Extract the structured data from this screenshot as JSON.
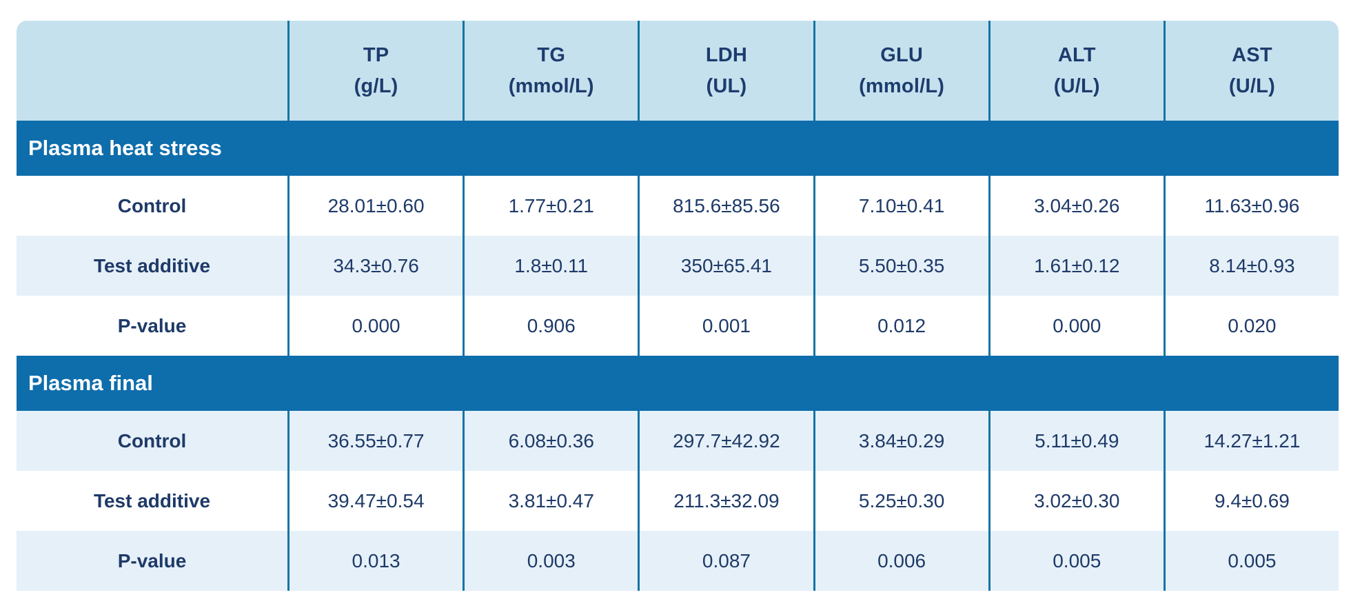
{
  "table": {
    "columns": [
      {
        "name": "TP",
        "unit": "(g/L)"
      },
      {
        "name": "TG",
        "unit": "(mmol/L)"
      },
      {
        "name": "LDH",
        "unit": "(UL)"
      },
      {
        "name": "GLU",
        "unit": "(mmol/L)"
      },
      {
        "name": "ALT",
        "unit": "(U/L)"
      },
      {
        "name": "AST",
        "unit": "(U/L)"
      }
    ],
    "sections": [
      {
        "title": "Plasma heat stress",
        "rows": [
          {
            "label": "Control",
            "values": [
              "28.01±0.60",
              "1.77±0.21",
              "815.6±85.56",
              "7.10±0.41",
              "3.04±0.26",
              "11.63±0.96"
            ]
          },
          {
            "label": "Test additive",
            "values": [
              "34.3±0.76",
              "1.8±0.11",
              "350±65.41",
              "5.50±0.35",
              "1.61±0.12",
              "8.14±0.93"
            ]
          },
          {
            "label": "P-value",
            "values": [
              "0.000",
              "0.906",
              "0.001",
              "0.012",
              "0.000",
              "0.020"
            ]
          }
        ]
      },
      {
        "title": "Plasma final",
        "rows": [
          {
            "label": "Control",
            "values": [
              "36.55±0.77",
              "6.08±0.36",
              "297.7±42.92",
              "3.84±0.29",
              "5.11±0.49",
              "14.27±1.21"
            ]
          },
          {
            "label": "Test additive",
            "values": [
              "39.47±0.54",
              "3.81±0.47",
              "211.3±32.09",
              "5.25±0.30",
              "3.02±0.30",
              "9.4±0.69"
            ]
          },
          {
            "label": "P-value",
            "values": [
              "0.013",
              "0.003",
              "0.087",
              "0.006",
              "0.005",
              "0.005"
            ]
          }
        ]
      }
    ],
    "colors": {
      "header_bg": "#c6e1ee",
      "section_band_bg": "#0e6dab",
      "row_alt_bg": "#e6f0f8",
      "divider": "#1474a4",
      "text": "#1e3a68",
      "section_text": "#ffffff"
    }
  },
  "chart_data": {
    "type": "table",
    "columns": [
      "",
      "TP (g/L)",
      "TG (mmol/L)",
      "LDH (UL)",
      "GLU (mmol/L)",
      "ALT (U/L)",
      "AST (U/L)"
    ],
    "sections": [
      {
        "title": "Plasma heat stress",
        "rows": [
          [
            "Control",
            "28.01±0.60",
            "1.77±0.21",
            "815.6±85.56",
            "7.10±0.41",
            "3.04±0.26",
            "11.63±0.96"
          ],
          [
            "Test additive",
            "34.3±0.76",
            "1.8±0.11",
            "350±65.41",
            "5.50±0.35",
            "1.61±0.12",
            "8.14±0.93"
          ],
          [
            "P-value",
            "0.000",
            "0.906",
            "0.001",
            "0.012",
            "0.000",
            "0.020"
          ]
        ]
      },
      {
        "title": "Plasma final",
        "rows": [
          [
            "Control",
            "36.55±0.77",
            "6.08±0.36",
            "297.7±42.92",
            "3.84±0.29",
            "5.11±0.49",
            "14.27±1.21"
          ],
          [
            "Test additive",
            "39.47±0.54",
            "3.81±0.47",
            "211.3±32.09",
            "5.25±0.30",
            "3.02±0.30",
            "9.4±0.69"
          ],
          [
            "P-value",
            "0.013",
            "0.003",
            "0.087",
            "0.006",
            "0.005",
            "0.005"
          ]
        ]
      }
    ]
  }
}
